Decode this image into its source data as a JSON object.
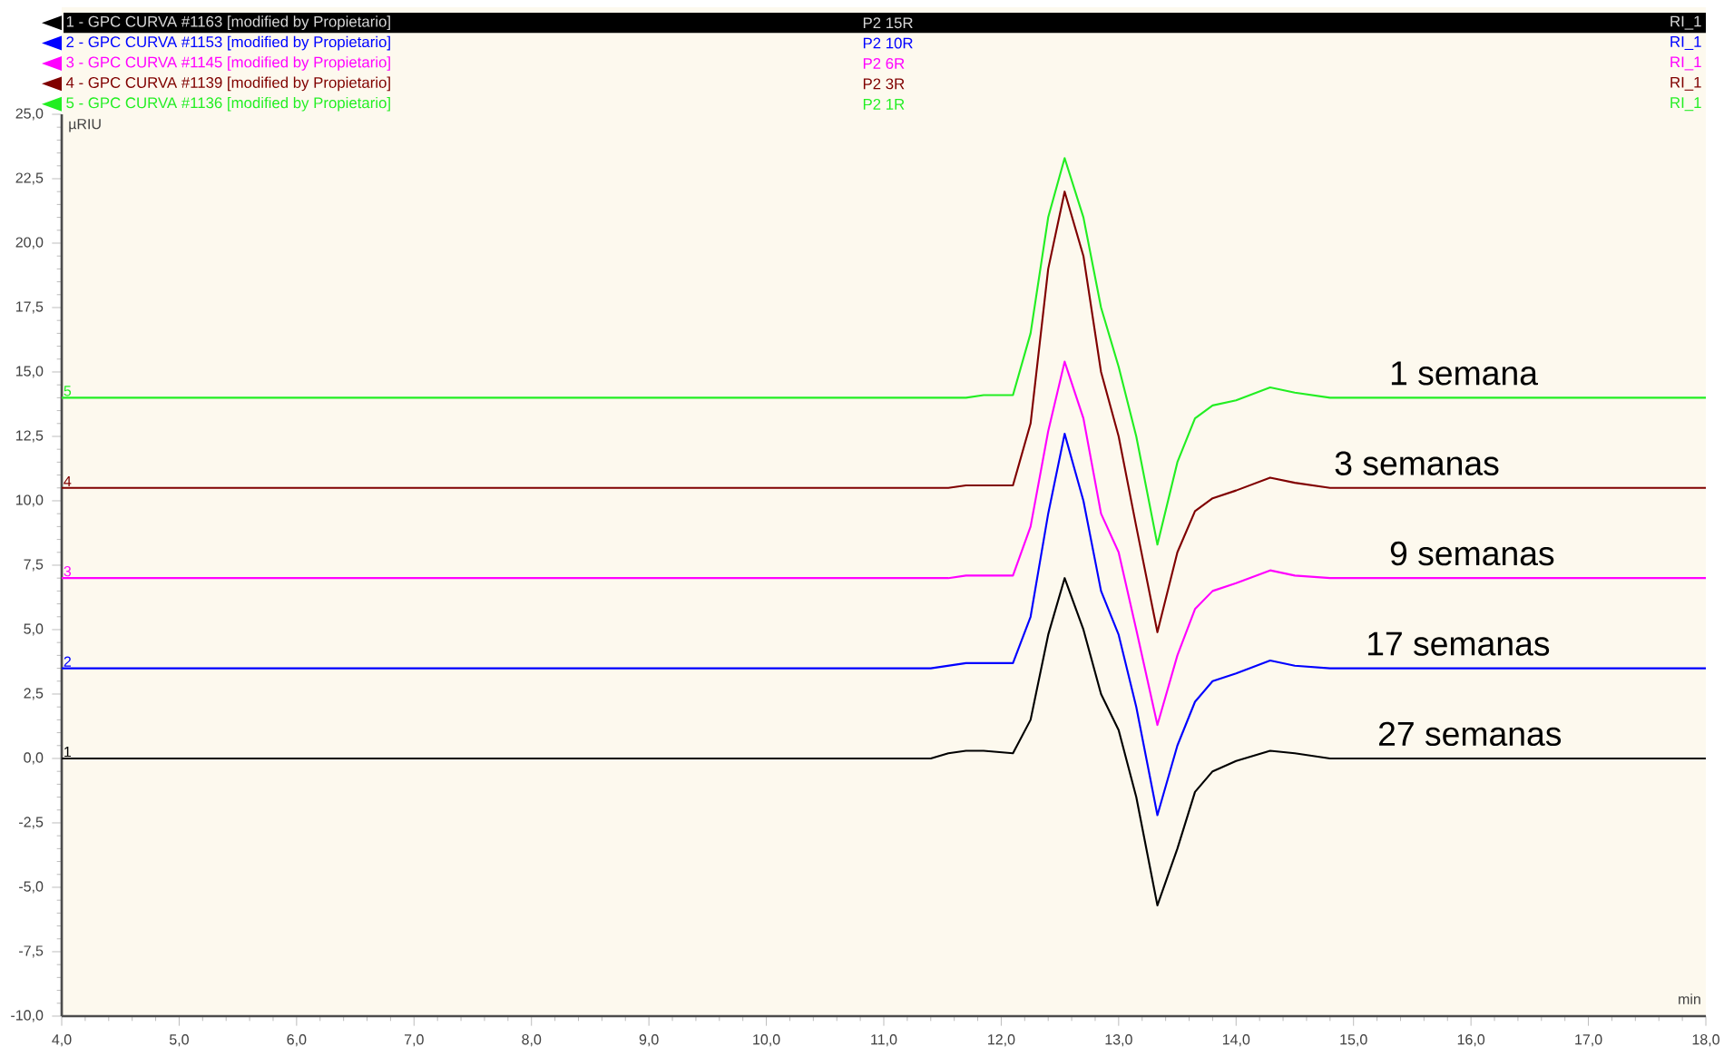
{
  "chart_data": {
    "type": "line",
    "xlabel": "min",
    "ylabel": "µRIU",
    "x": [
      4,
      11.4,
      11.55,
      11.7,
      11.85,
      12.1,
      12.25,
      12.4,
      12.54,
      12.7,
      12.85,
      13.0,
      13.15,
      13.33,
      13.5,
      13.65,
      13.8,
      14.0,
      14.29,
      14.5,
      14.8,
      18
    ],
    "series": [
      {
        "name": "1 - GPC CURVA #1163 [modified by Propietario]",
        "color": "#000000",
        "values": [
          0,
          0,
          0.2,
          0.3,
          0.3,
          0.2,
          1.5,
          4.8,
          7.0,
          5.0,
          2.5,
          1.1,
          -1.5,
          -5.7,
          -3.5,
          -1.3,
          -0.5,
          -0.1,
          0.3,
          0.2,
          0,
          0
        ]
      },
      {
        "name": "2 - GPC CURVA #1153 [modified by Propietario]",
        "color": "#0000ff",
        "values": [
          3.5,
          3.5,
          3.6,
          3.7,
          3.7,
          3.7,
          5.5,
          9.5,
          12.6,
          10.0,
          6.5,
          4.8,
          2.0,
          -2.2,
          0.5,
          2.2,
          3.0,
          3.3,
          3.8,
          3.6,
          3.5,
          3.5
        ]
      },
      {
        "name": "3 - GPC CURVA #1145 [modified by Propietario]",
        "color": "#ff00ff",
        "values": [
          7,
          7,
          7,
          7.1,
          7.1,
          7.1,
          9,
          12.7,
          15.4,
          13.2,
          9.5,
          8.0,
          5.0,
          1.3,
          4.0,
          5.8,
          6.5,
          6.8,
          7.3,
          7.1,
          7.0,
          7.0
        ]
      },
      {
        "name": "4 - GPC CURVA #1139 [modified by Propietario]",
        "color": "#800000",
        "values": [
          10.5,
          10.5,
          10.5,
          10.6,
          10.6,
          10.6,
          13,
          19,
          22,
          19.5,
          15,
          12.5,
          9,
          4.9,
          8.0,
          9.6,
          10.1,
          10.4,
          10.9,
          10.7,
          10.5,
          10.5
        ]
      },
      {
        "name": "5 - GPC CURVA #1136 [modified by Propietario]",
        "color": "#22ee22",
        "values": [
          14,
          14,
          14,
          14,
          14.1,
          14.1,
          16.5,
          21,
          23.3,
          21,
          17.5,
          15.2,
          12.5,
          8.3,
          11.5,
          13.2,
          13.7,
          13.9,
          14.4,
          14.2,
          14.0,
          14.0
        ]
      }
    ],
    "xlim": [
      4,
      18
    ],
    "ylim": [
      -10,
      25
    ],
    "xticks": [
      {
        "value": 4,
        "label": "4,0"
      },
      {
        "value": 5,
        "label": "5,0"
      },
      {
        "value": 6,
        "label": "6,0"
      },
      {
        "value": 7,
        "label": "7,0"
      },
      {
        "value": 8,
        "label": "8,0"
      },
      {
        "value": 9,
        "label": "9,0"
      },
      {
        "value": 10,
        "label": "10,0"
      },
      {
        "value": 11,
        "label": "11,0"
      },
      {
        "value": 12,
        "label": "12,0"
      },
      {
        "value": 13,
        "label": "13,0"
      },
      {
        "value": 14,
        "label": "14,0"
      },
      {
        "value": 15,
        "label": "15,0"
      },
      {
        "value": 16,
        "label": "16,0"
      },
      {
        "value": 17,
        "label": "17,0"
      },
      {
        "value": 18,
        "label": "18,0"
      }
    ],
    "yticks": [
      {
        "value": -10,
        "label": "-10,0"
      },
      {
        "value": -7.5,
        "label": "-7,5"
      },
      {
        "value": -5,
        "label": "-5,0"
      },
      {
        "value": -2.5,
        "label": "-2,5"
      },
      {
        "value": 0,
        "label": "0,0"
      },
      {
        "value": 2.5,
        "label": "2,5"
      },
      {
        "value": 5,
        "label": "5,0"
      },
      {
        "value": 7.5,
        "label": "7,5"
      },
      {
        "value": 10,
        "label": "10,0"
      },
      {
        "value": 12.5,
        "label": "12,5"
      },
      {
        "value": 15,
        "label": "15,0"
      },
      {
        "value": 17.5,
        "label": "17,5"
      },
      {
        "value": 20,
        "label": "20,0"
      },
      {
        "value": 22.5,
        "label": "22,5"
      },
      {
        "value": 25,
        "label": "25,0"
      }
    ],
    "legend": "top",
    "marker": "none",
    "line_style": "solid",
    "annotations": [
      "P2 15R",
      "RI_1",
      "P2 10R",
      "RI_1",
      "P2 6R",
      "RI_1",
      "P2 3R",
      "RI_1",
      "P2 1R",
      "RI_1",
      {
        "text": "1 semana",
        "x": 15.3,
        "y": 14
      },
      {
        "text": "3 semanas",
        "x": 14.83,
        "y": 10.5
      },
      {
        "text": "9 semanas",
        "x": 15.3,
        "y": 7
      },
      {
        "text": "17 semanas",
        "x": 15.1,
        "y": 3.5
      },
      {
        "text": "27  semanas",
        "x": 15.2,
        "y": 0
      },
      {
        "text": "1",
        "x": 4,
        "y": 0
      },
      {
        "text": "2",
        "x": 4,
        "y": 3.5
      },
      {
        "text": "3",
        "x": 4,
        "y": 7
      },
      {
        "text": "4",
        "x": 4,
        "y": 10.5
      },
      {
        "text": "5",
        "x": 4,
        "y": 14
      }
    ]
  }
}
